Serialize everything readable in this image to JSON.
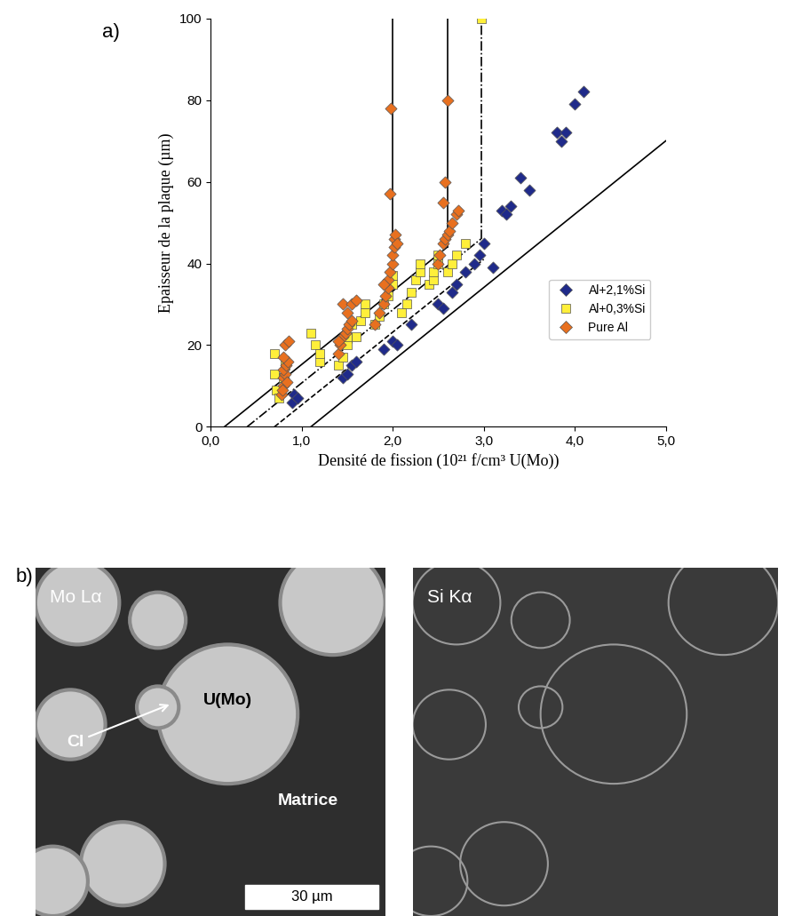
{
  "chart_data": {
    "type": "scatter",
    "panel_label": "a)",
    "x_label": "Densité de fission (10²¹ f/cm³ U(Mo))",
    "y_label": "Epaisseur de la plaque (µm)",
    "xlim": [
      0,
      5
    ],
    "ylim": [
      0,
      100
    ],
    "xticks": [
      {
        "value": 0,
        "label": "0,0"
      },
      {
        "value": 1,
        "label": "1,0"
      },
      {
        "value": 2,
        "label": "2,0"
      },
      {
        "value": 3,
        "label": "3,0"
      },
      {
        "value": 4,
        "label": "4,0"
      },
      {
        "value": 5,
        "label": "5,0"
      }
    ],
    "yticks": [
      0,
      20,
      40,
      60,
      80,
      100
    ],
    "grid": false,
    "legend": "lower right",
    "series": [
      {
        "name": "Al+2,1%Si",
        "color": "#1f2a8a",
        "marker": "diamond",
        "x": [
          0.9,
          0.92,
          0.95,
          1.45,
          1.5,
          1.55,
          1.6,
          1.9,
          2.0,
          2.05,
          2.2,
          2.5,
          2.55,
          2.65,
          2.7,
          2.8,
          2.9,
          2.95,
          3.0,
          3.1,
          3.2,
          3.25,
          3.3,
          3.4,
          3.5,
          3.8,
          3.85,
          3.9,
          4.0,
          4.1
        ],
        "values": [
          6,
          8,
          7,
          12,
          13,
          15,
          16,
          19,
          21,
          20,
          25,
          30,
          29,
          33,
          35,
          38,
          40,
          42,
          45,
          39,
          53,
          52,
          54,
          61,
          58,
          72,
          70,
          72,
          79,
          82
        ]
      },
      {
        "name": "Al+0,3%Si",
        "color": "#ffef3a",
        "marker": "square",
        "x": [
          0.7,
          0.7,
          0.72,
          0.75,
          0.8,
          0.82,
          1.1,
          1.15,
          1.2,
          1.2,
          1.4,
          1.45,
          1.5,
          1.5,
          1.55,
          1.6,
          1.65,
          1.7,
          1.7,
          1.8,
          1.85,
          1.9,
          1.95,
          2.0,
          2.0,
          2.1,
          2.15,
          2.2,
          2.25,
          2.3,
          2.3,
          2.4,
          2.45,
          2.45,
          2.5,
          2.5,
          2.6,
          2.65,
          2.7,
          2.8,
          2.97
        ],
        "values": [
          18,
          13,
          9,
          7,
          12,
          15,
          23,
          20,
          16,
          18,
          15,
          17,
          20,
          22,
          25,
          22,
          26,
          28,
          30,
          25,
          27,
          30,
          32,
          35,
          37,
          28,
          30,
          33,
          36,
          38,
          40,
          35,
          36,
          38,
          40,
          42,
          38,
          40,
          42,
          45,
          100
        ]
      },
      {
        "name": "Pure Al",
        "color": "#e8701f",
        "marker": "diamond",
        "x": [
          0.78,
          0.8,
          0.8,
          0.82,
          0.8,
          0.83,
          0.85,
          0.8,
          0.82,
          0.86,
          0.84,
          0.79,
          1.4,
          1.42,
          1.45,
          1.48,
          1.5,
          1.52,
          1.55,
          1.5,
          1.45,
          1.55,
          1.6,
          1.4,
          1.8,
          1.85,
          1.9,
          1.92,
          1.95,
          1.95,
          1.97,
          2.0,
          2.0,
          2.02,
          2.03,
          1.97,
          1.98,
          1.9,
          2.02,
          2.05,
          2.5,
          2.52,
          2.55,
          2.57,
          2.6,
          2.62,
          2.65,
          2.7,
          2.72,
          2.55,
          2.57,
          2.6
        ],
        "values": [
          8,
          10,
          12,
          13,
          14,
          15,
          16,
          17,
          20,
          21,
          11,
          9,
          18,
          20,
          22,
          23,
          24,
          25,
          26,
          28,
          30,
          30,
          31,
          21,
          25,
          28,
          30,
          32,
          34,
          36,
          38,
          40,
          42,
          46,
          47,
          57,
          78,
          35,
          44,
          45,
          40,
          42,
          45,
          46,
          47,
          48,
          50,
          52,
          53,
          55,
          60,
          80
        ]
      }
    ],
    "reference_lines": [
      {
        "x": [
          0.15,
          2.6
        ],
        "y": [
          0,
          44
        ],
        "line_style": "solid"
      },
      {
        "x": [
          2.0,
          2.0
        ],
        "y": [
          33,
          100
        ],
        "line_style": "solid"
      },
      {
        "x": [
          2.6,
          2.6
        ],
        "y": [
          44,
          100
        ],
        "line_style": "solid"
      },
      {
        "x": [
          0.4,
          2.97
        ],
        "y": [
          0,
          46
        ],
        "line_style": "dashdot"
      },
      {
        "x": [
          2.97,
          2.97
        ],
        "y": [
          46,
          100
        ],
        "line_style": "dashdot"
      },
      {
        "x": [
          0.7,
          3.0
        ],
        "y": [
          0,
          41
        ],
        "line_style": "dashed"
      },
      {
        "x": [
          1.1,
          5.0
        ],
        "y": [
          0,
          70
        ],
        "line_style": "solid"
      }
    ]
  },
  "panel_b": {
    "panel_label": "b)",
    "images": [
      {
        "title": "Mo Lα",
        "particle": "U(Mo)",
        "interaction_layer": "CI",
        "matrix": "Matrice",
        "scale_bar": "30 µm"
      },
      {
        "title": "Si Kα"
      }
    ]
  }
}
